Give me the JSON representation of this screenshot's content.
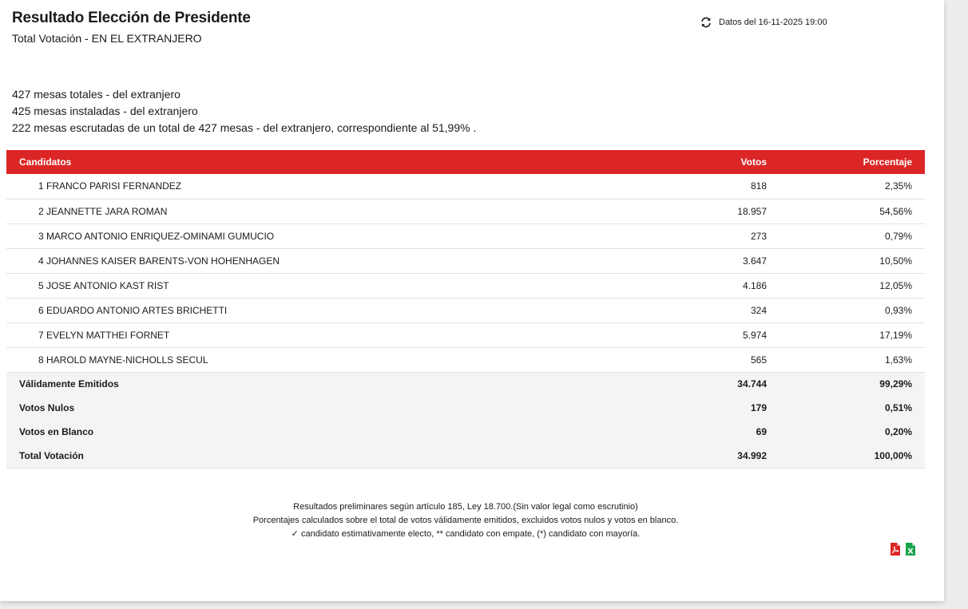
{
  "header": {
    "title": "Resultado Elección de Presidente",
    "subtitle": "Total Votación - EN EL EXTRANJERO",
    "update_text": "Datos del 16-11-2025 19:00"
  },
  "info": {
    "line1": "427 mesas totales - del extranjero",
    "line2": "425 mesas instaladas - del extranjero",
    "line3": "222 mesas escrutadas de un total de 427 mesas - del extranjero, correspondiente al 51,99% ."
  },
  "table": {
    "headers": {
      "candidates": "Candidatos",
      "votes": "Votos",
      "percent": "Porcentaje"
    },
    "rows": [
      {
        "name": "1 FRANCO PARISI FERNANDEZ",
        "votes": "818",
        "percent": "2,35%"
      },
      {
        "name": "2 JEANNETTE JARA ROMAN",
        "votes": "18.957",
        "percent": "54,56%"
      },
      {
        "name": "3 MARCO ANTONIO ENRIQUEZ-OMINAMI GUMUCIO",
        "votes": "273",
        "percent": "0,79%"
      },
      {
        "name": "4 JOHANNES KAISER BARENTS-VON HOHENHAGEN",
        "votes": "3.647",
        "percent": "10,50%"
      },
      {
        "name": "5 JOSE ANTONIO KAST RIST",
        "votes": "4.186",
        "percent": "12,05%"
      },
      {
        "name": "6 EDUARDO ANTONIO ARTES BRICHETTI",
        "votes": "324",
        "percent": "0,93%"
      },
      {
        "name": "7 EVELYN MATTHEI FORNET",
        "votes": "5.974",
        "percent": "17,19%"
      },
      {
        "name": "8 HAROLD MAYNE-NICHOLLS SECUL",
        "votes": "565",
        "percent": "1,63%"
      }
    ],
    "totals": [
      {
        "label": "Válidamente Emitidos",
        "votes": "34.744",
        "percent": "99,29%"
      },
      {
        "label": "Votos Nulos",
        "votes": "179",
        "percent": "0,51%"
      },
      {
        "label": "Votos en Blanco",
        "votes": "69",
        "percent": "0,20%"
      },
      {
        "label": "Total Votación",
        "votes": "34.992",
        "percent": "100,00%"
      }
    ]
  },
  "footer": {
    "line1": "Resultados preliminares según artículo 185, Ley 18.700.(Sin valor legal como escrutinio)",
    "line2": "Porcentajes calculados sobre el total de votos válidamente emitidos, excluidos votos nulos y votos en blanco.",
    "line3": "✓ candidato estimativamente electo, ** candidato con empate, (*) candidato con mayoría."
  },
  "colors": {
    "header_bg": "#dc2626",
    "pdf_icon": "#dc2626",
    "excel_icon": "#16a34a",
    "totals_bg": "#f3f4f6"
  },
  "icons": {
    "update": "refresh-icon",
    "export_pdf": "pdf-file-icon",
    "export_excel": "excel-file-icon"
  }
}
